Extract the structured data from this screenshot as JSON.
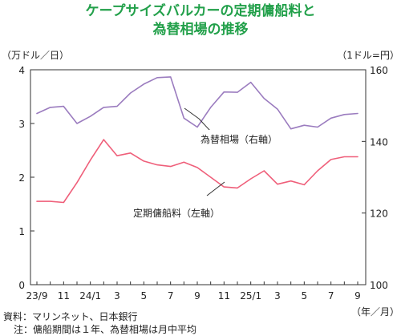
{
  "chart_data": {
    "type": "line",
    "title": "ケープサイズバルカーの定期傭船料と",
    "subtitle": "為替相場の推移",
    "left_unit": "（万ドル／日）",
    "right_unit": "（1ドル=円）",
    "x_unit": "（年／月）",
    "x": [
      "23/9",
      "23/10",
      "23/11",
      "23/12",
      "24/1",
      "24/2",
      "24/3",
      "24/4",
      "24/5",
      "24/6",
      "24/7",
      "24/8",
      "24/9",
      "24/10",
      "24/11",
      "24/12",
      "25/1",
      "25/2",
      "25/3",
      "25/4",
      "25/5",
      "25/6",
      "25/7",
      "25/8",
      "25/9"
    ],
    "x_tick_labels": [
      "23/9",
      "11",
      "24/1",
      "3",
      "5",
      "7",
      "9",
      "11",
      "25/1",
      "3",
      "5",
      "7",
      "9"
    ],
    "left_ylim": [
      0,
      4
    ],
    "left_yticks": [
      "0",
      "1",
      "2",
      "3",
      "4"
    ],
    "right_ylim": [
      100,
      160
    ],
    "right_yticks": [
      "100",
      "120",
      "140",
      "160"
    ],
    "grid": false,
    "series": [
      {
        "name": "為替相場（右軸）",
        "axis": "right",
        "color": "#9b7cbf",
        "values": [
          147.8,
          149.5,
          149.8,
          145.0,
          147.0,
          149.5,
          149.8,
          153.5,
          156.0,
          157.8,
          158.0,
          146.5,
          144.0,
          149.5,
          153.8,
          153.7,
          156.5,
          152.0,
          149.0,
          143.5,
          144.5,
          144.0,
          146.5,
          147.5,
          147.8
        ]
      },
      {
        "name": "定期傭船料（左軸）",
        "axis": "left",
        "color": "#ef5f7a",
        "values": [
          1.55,
          1.55,
          1.53,
          1.9,
          2.32,
          2.7,
          2.4,
          2.45,
          2.3,
          2.23,
          2.2,
          2.28,
          2.18,
          2.0,
          1.82,
          1.8,
          1.97,
          2.12,
          1.87,
          1.93,
          1.86,
          2.12,
          2.33,
          2.38,
          2.38
        ]
      }
    ]
  },
  "footnotes": {
    "source": "資料：マリンネット、日本銀行",
    "note": "注：傭船期間は１年、為替相場は月中平均"
  }
}
